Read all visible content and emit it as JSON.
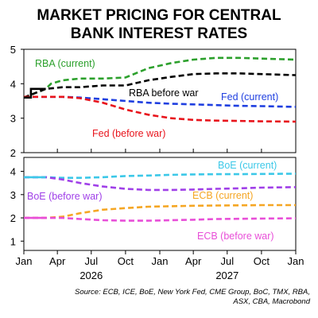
{
  "title_line1": "MARKET PRICING FOR CENTRAL",
  "title_line2": "BANK INTEREST RATES",
  "source_line1": "Source: ECB, ICE, BoE, New York Fed, CME Group, BoC, TMX, RBA,",
  "source_line2": "ASX, CBA, Macrobond",
  "chart_data": [
    {
      "type": "line",
      "panel": "top",
      "ylim": [
        2,
        5
      ],
      "yticks": [
        5,
        4,
        3,
        2
      ],
      "series": [
        {
          "name": "RBA (current)",
          "color": "#2ca02c",
          "style": "dashed",
          "x": [
            "2026-01-01",
            "2026-03-01",
            "2026-03-15",
            "2026-04-15",
            "2026-06-01",
            "2026-08-01",
            "2026-10-01",
            "2026-12-01",
            "2027-02-01",
            "2027-04-01",
            "2027-06-01",
            "2027-08-01",
            "2027-10-01",
            "2028-01-01"
          ],
          "y": [
            3.6,
            3.85,
            4.0,
            4.1,
            4.15,
            4.15,
            4.18,
            4.45,
            4.6,
            4.7,
            4.75,
            4.75,
            4.73,
            4.7
          ]
        },
        {
          "name": "RBA before war",
          "color": "#000000",
          "style": "dashed",
          "x": [
            "2026-01-01",
            "2026-03-01",
            "2026-04-15",
            "2026-06-01",
            "2026-08-01",
            "2026-10-01",
            "2026-12-01",
            "2027-02-01",
            "2027-04-01",
            "2027-06-01",
            "2027-08-01",
            "2027-10-01",
            "2028-01-01"
          ],
          "y": [
            3.6,
            3.85,
            3.9,
            3.9,
            3.95,
            3.95,
            4.1,
            4.2,
            4.28,
            4.3,
            4.3,
            4.28,
            4.25
          ]
        },
        {
          "name": "Fed (current)",
          "color": "#1f3fe0",
          "style": "dashed",
          "x": [
            "2026-01-01",
            "2026-04-15",
            "2026-06-01",
            "2026-08-01",
            "2026-10-01",
            "2026-12-01",
            "2027-02-01",
            "2027-04-01",
            "2027-06-01",
            "2027-08-01",
            "2027-10-01",
            "2028-01-01"
          ],
          "y": [
            3.62,
            3.62,
            3.6,
            3.55,
            3.5,
            3.45,
            3.42,
            3.4,
            3.38,
            3.36,
            3.35,
            3.33
          ]
        },
        {
          "name": "Fed (before war)",
          "color": "#e8141c",
          "style": "dashed",
          "x": [
            "2026-01-01",
            "2026-04-15",
            "2026-06-01",
            "2026-08-01",
            "2026-10-01",
            "2026-12-01",
            "2027-02-01",
            "2027-04-01",
            "2027-06-01",
            "2027-08-01",
            "2027-10-01",
            "2028-01-01"
          ],
          "y": [
            3.62,
            3.62,
            3.58,
            3.45,
            3.25,
            3.1,
            3.0,
            2.95,
            2.93,
            2.92,
            2.91,
            2.9
          ]
        }
      ]
    },
    {
      "type": "line",
      "panel": "bottom",
      "ylim": [
        0.6,
        4.6
      ],
      "yticks": [
        4,
        3,
        2,
        1
      ],
      "series": [
        {
          "name": "BoE (current)",
          "color": "#3cc8e8",
          "style": "dashed",
          "x": [
            "2026-01-01",
            "2026-03-01",
            "2026-04-15",
            "2026-06-01",
            "2026-08-01",
            "2026-10-01",
            "2026-12-01",
            "2027-02-01",
            "2027-04-01",
            "2027-06-01",
            "2027-08-01",
            "2027-10-01",
            "2028-01-01"
          ],
          "y": [
            3.75,
            3.75,
            3.72,
            3.72,
            3.75,
            3.8,
            3.82,
            3.85,
            3.87,
            3.88,
            3.88,
            3.89,
            3.9
          ]
        },
        {
          "name": "BoE (before war)",
          "color": "#a040e8",
          "style": "dashed",
          "x": [
            "2026-01-01",
            "2026-03-01",
            "2026-04-15",
            "2026-06-01",
            "2026-08-01",
            "2026-10-01",
            "2026-12-01",
            "2027-02-01",
            "2027-04-01",
            "2027-06-01",
            "2027-08-01",
            "2027-10-01",
            "2028-01-01"
          ],
          "y": [
            3.75,
            3.75,
            3.65,
            3.5,
            3.35,
            3.25,
            3.2,
            3.2,
            3.22,
            3.25,
            3.27,
            3.3,
            3.32
          ]
        },
        {
          "name": "ECB (current)",
          "color": "#f5a623",
          "style": "dashed",
          "x": [
            "2026-01-01",
            "2026-03-01",
            "2026-04-15",
            "2026-06-01",
            "2026-08-01",
            "2026-10-01",
            "2026-12-01",
            "2027-02-01",
            "2027-04-01",
            "2027-06-01",
            "2027-08-01",
            "2027-10-01",
            "2028-01-01"
          ],
          "y": [
            2.0,
            2.0,
            2.05,
            2.2,
            2.35,
            2.42,
            2.48,
            2.5,
            2.52,
            2.53,
            2.54,
            2.55,
            2.55
          ]
        },
        {
          "name": "ECB (before war)",
          "color": "#e84fd8",
          "style": "dashed",
          "x": [
            "2026-01-01",
            "2026-03-01",
            "2026-04-15",
            "2026-06-01",
            "2026-08-01",
            "2026-10-01",
            "2026-12-01",
            "2027-02-01",
            "2027-04-01",
            "2027-06-01",
            "2027-08-01",
            "2027-10-01",
            "2028-01-01"
          ],
          "y": [
            2.0,
            2.0,
            2.0,
            1.95,
            1.9,
            1.88,
            1.88,
            1.9,
            1.92,
            1.95,
            1.96,
            1.97,
            1.98
          ]
        }
      ]
    }
  ],
  "history": {
    "top": {
      "color": "#000000",
      "x": [
        "2026-01-01",
        "2026-01-20",
        "2026-01-20",
        "2026-02-15",
        "2026-02-15",
        "2026-03-01"
      ],
      "y": [
        3.6,
        3.6,
        3.85,
        3.85,
        3.85,
        3.85
      ]
    },
    "bottom_boe": {
      "color": "#3cc8e8",
      "x": [
        "2026-01-01",
        "2026-03-01"
      ],
      "y": [
        3.75,
        3.75
      ]
    },
    "bottom_ecb": {
      "color": "#e84fd8",
      "x": [
        "2026-01-01",
        "2026-03-01"
      ],
      "y": [
        2.0,
        2.0
      ]
    }
  },
  "x_axis": {
    "ticks": [
      "Jan",
      "Apr",
      "Jul",
      "Oct",
      "Jan",
      "Apr",
      "Jul",
      "Oct",
      "Jan"
    ],
    "years": [
      "2026",
      "2027"
    ]
  },
  "labels": {
    "rba_current": "RBA (current)",
    "rba_before": "RBA before war",
    "fed_current": "Fed (current)",
    "fed_before": "Fed (before war)",
    "boe_current": "BoE (current)",
    "boe_before": "BoE (before war)",
    "ecb_current": "ECB (current)",
    "ecb_before": "ECB (before war)"
  }
}
